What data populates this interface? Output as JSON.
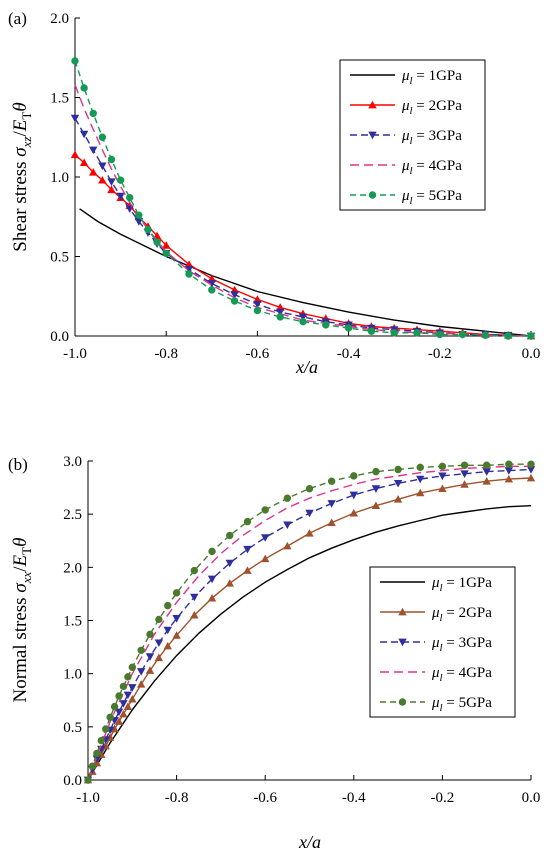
{
  "chart_data": [
    {
      "id": "a",
      "type": "line",
      "panel_label": "(a)",
      "ylabel_prefix": "Shear stress ",
      "ylabel_symbol": "σ",
      "ylabel_symbol_sub": "xz",
      "ylabel_div": "/",
      "ylabel_E": "E",
      "ylabel_E_sub": "T",
      "ylabel_theta": "θ",
      "xlabel_main": "x",
      "xlabel_rest": "/a",
      "xlim": [
        -1.0,
        0.0
      ],
      "ylim": [
        0.0,
        2.0
      ],
      "xticks": [
        -1.0,
        -0.8,
        -0.6,
        -0.4,
        -0.2,
        0.0
      ],
      "xtick_labels": [
        "-1.0",
        "-0.8",
        "-0.6",
        "-0.4",
        "-0.2",
        "0.0"
      ],
      "yticks": [
        0.0,
        0.5,
        1.0,
        1.5,
        2.0
      ],
      "ytick_labels": [
        "0.0",
        "0.5",
        "1.0",
        "1.5",
        "2.0"
      ],
      "grid": false,
      "legend_position": "top-right",
      "series": [
        {
          "name": "1GPa",
          "label_prefix": "μ",
          "label_sub": "l",
          "label_eq": " = ",
          "color": "#000000",
          "dash": "solid",
          "marker": "none",
          "x": [
            -0.99,
            -0.95,
            -0.9,
            -0.85,
            -0.8,
            -0.75,
            -0.7,
            -0.6,
            -0.5,
            -0.4,
            -0.3,
            -0.2,
            -0.1,
            0.0
          ],
          "y": [
            0.8,
            0.72,
            0.64,
            0.57,
            0.5,
            0.44,
            0.38,
            0.28,
            0.21,
            0.15,
            0.1,
            0.06,
            0.03,
            0.0
          ]
        },
        {
          "name": "2GPa",
          "label_prefix": "μ",
          "label_sub": "l",
          "label_eq": " = ",
          "color": "#ff0000",
          "dash": "solid",
          "marker": "triangle",
          "x": [
            -1.0,
            -0.98,
            -0.96,
            -0.94,
            -0.92,
            -0.9,
            -0.88,
            -0.86,
            -0.84,
            -0.82,
            -0.8,
            -0.75,
            -0.7,
            -0.65,
            -0.6,
            -0.55,
            -0.5,
            -0.45,
            -0.4,
            -0.35,
            -0.3,
            -0.25,
            -0.2,
            -0.15,
            -0.1,
            -0.05,
            0.0
          ],
          "y": [
            1.14,
            1.09,
            1.03,
            0.98,
            0.92,
            0.87,
            0.82,
            0.75,
            0.69,
            0.63,
            0.57,
            0.45,
            0.36,
            0.29,
            0.23,
            0.18,
            0.14,
            0.11,
            0.08,
            0.06,
            0.05,
            0.04,
            0.03,
            0.02,
            0.01,
            0.005,
            0.0
          ]
        },
        {
          "name": "3GPa",
          "label_prefix": "μ",
          "label_sub": "l",
          "label_eq": " = ",
          "color": "#2e2e9e",
          "dash": "7,4",
          "marker": "triangle-down",
          "x": [
            -1.0,
            -0.98,
            -0.96,
            -0.94,
            -0.92,
            -0.9,
            -0.88,
            -0.86,
            -0.84,
            -0.82,
            -0.8,
            -0.75,
            -0.7,
            -0.65,
            -0.6,
            -0.55,
            -0.5,
            -0.45,
            -0.4,
            -0.35,
            -0.3,
            -0.25,
            -0.2,
            -0.15,
            -0.1,
            -0.05,
            0.0
          ],
          "y": [
            1.37,
            1.27,
            1.17,
            1.07,
            0.97,
            0.88,
            0.8,
            0.72,
            0.65,
            0.58,
            0.52,
            0.42,
            0.33,
            0.26,
            0.2,
            0.15,
            0.12,
            0.09,
            0.07,
            0.05,
            0.04,
            0.03,
            0.02,
            0.01,
            0.01,
            0.005,
            0.0
          ]
        },
        {
          "name": "4GPa",
          "label_prefix": "μ",
          "label_sub": "l",
          "label_eq": " = ",
          "color": "#e0338a",
          "dash": "9,5",
          "marker": "none",
          "x": [
            -1.0,
            -0.98,
            -0.96,
            -0.94,
            -0.92,
            -0.9,
            -0.88,
            -0.86,
            -0.84,
            -0.82,
            -0.8,
            -0.75,
            -0.7,
            -0.65,
            -0.6,
            -0.55,
            -0.5,
            -0.45,
            -0.4,
            -0.35,
            -0.3,
            -0.25,
            -0.2,
            -0.15,
            -0.1,
            -0.05,
            0.0
          ],
          "y": [
            1.58,
            1.43,
            1.3,
            1.17,
            1.05,
            0.94,
            0.84,
            0.75,
            0.67,
            0.6,
            0.53,
            0.41,
            0.32,
            0.24,
            0.18,
            0.14,
            0.1,
            0.08,
            0.06,
            0.04,
            0.03,
            0.02,
            0.02,
            0.01,
            0.005,
            0.0,
            0.0
          ]
        },
        {
          "name": "5GPa",
          "label_prefix": "μ",
          "label_sub": "l",
          "label_eq": " = ",
          "color": "#159a55",
          "dash": "6,4",
          "marker": "circle",
          "x": [
            -1.0,
            -0.98,
            -0.96,
            -0.94,
            -0.92,
            -0.9,
            -0.88,
            -0.86,
            -0.84,
            -0.82,
            -0.8,
            -0.75,
            -0.7,
            -0.65,
            -0.6,
            -0.55,
            -0.5,
            -0.45,
            -0.4,
            -0.35,
            -0.3,
            -0.25,
            -0.2,
            -0.15,
            -0.1,
            -0.05,
            0.0
          ],
          "y": [
            1.73,
            1.56,
            1.4,
            1.25,
            1.11,
            0.98,
            0.87,
            0.76,
            0.67,
            0.59,
            0.52,
            0.39,
            0.29,
            0.22,
            0.16,
            0.12,
            0.09,
            0.07,
            0.05,
            0.03,
            0.02,
            0.02,
            0.01,
            0.01,
            0.005,
            0.0,
            0.0
          ]
        }
      ]
    },
    {
      "id": "b",
      "type": "line",
      "panel_label": "(b)",
      "ylabel_prefix": "Normal stress ",
      "ylabel_symbol": "σ",
      "ylabel_symbol_sub": "xx",
      "ylabel_div": "/",
      "ylabel_E": "E",
      "ylabel_E_sub": "T",
      "ylabel_theta": "θ",
      "xlabel_main": "x",
      "xlabel_rest": "/a",
      "xlim": [
        -1.0,
        0.0
      ],
      "ylim": [
        0.0,
        3.0
      ],
      "xticks": [
        -1.0,
        -0.8,
        -0.6,
        -0.4,
        -0.2,
        0.0
      ],
      "xtick_labels": [
        "-1.0",
        "-0.8",
        "-0.6",
        "-0.4",
        "-0.2",
        "0.0"
      ],
      "yticks": [
        0.0,
        0.5,
        1.0,
        1.5,
        2.0,
        2.5,
        3.0
      ],
      "ytick_labels": [
        "0.0",
        "0.5",
        "1.0",
        "1.5",
        "2.0",
        "2.5",
        "3.0"
      ],
      "grid": false,
      "legend_position": "bottom-right",
      "series": [
        {
          "name": "1GPa",
          "label_prefix": "μ",
          "label_sub": "l",
          "label_eq": " = ",
          "color": "#000000",
          "dash": "solid",
          "marker": "none",
          "x": [
            -1.0,
            -0.95,
            -0.9,
            -0.85,
            -0.8,
            -0.75,
            -0.7,
            -0.65,
            -0.6,
            -0.55,
            -0.5,
            -0.45,
            -0.4,
            -0.35,
            -0.3,
            -0.25,
            -0.2,
            -0.15,
            -0.1,
            -0.05,
            0.0
          ],
          "y": [
            0.0,
            0.35,
            0.66,
            0.93,
            1.17,
            1.38,
            1.56,
            1.72,
            1.86,
            1.98,
            2.09,
            2.18,
            2.26,
            2.33,
            2.39,
            2.44,
            2.49,
            2.52,
            2.55,
            2.57,
            2.58
          ]
        },
        {
          "name": "2GPa",
          "label_prefix": "μ",
          "label_sub": "l",
          "label_eq": " = ",
          "color": "#a0522d",
          "dash": "solid",
          "marker": "triangle",
          "x": [
            -1.0,
            -0.99,
            -0.98,
            -0.97,
            -0.96,
            -0.95,
            -0.94,
            -0.93,
            -0.92,
            -0.91,
            -0.9,
            -0.88,
            -0.86,
            -0.84,
            -0.82,
            -0.8,
            -0.76,
            -0.72,
            -0.68,
            -0.64,
            -0.6,
            -0.55,
            -0.5,
            -0.45,
            -0.4,
            -0.35,
            -0.3,
            -0.25,
            -0.2,
            -0.15,
            -0.1,
            -0.05,
            0.0
          ],
          "y": [
            0.0,
            0.08,
            0.16,
            0.24,
            0.32,
            0.4,
            0.48,
            0.55,
            0.62,
            0.69,
            0.76,
            0.9,
            1.03,
            1.15,
            1.26,
            1.36,
            1.55,
            1.71,
            1.85,
            1.97,
            2.08,
            2.2,
            2.32,
            2.42,
            2.51,
            2.58,
            2.64,
            2.7,
            2.74,
            2.78,
            2.81,
            2.83,
            2.84
          ]
        },
        {
          "name": "3GPa",
          "label_prefix": "μ",
          "label_sub": "l",
          "label_eq": " = ",
          "color": "#2e2e9e",
          "dash": "7,4",
          "marker": "triangle-down",
          "x": [
            -1.0,
            -0.99,
            -0.98,
            -0.97,
            -0.96,
            -0.95,
            -0.94,
            -0.93,
            -0.92,
            -0.91,
            -0.9,
            -0.88,
            -0.86,
            -0.84,
            -0.82,
            -0.8,
            -0.76,
            -0.72,
            -0.68,
            -0.64,
            -0.6,
            -0.55,
            -0.5,
            -0.45,
            -0.4,
            -0.35,
            -0.3,
            -0.25,
            -0.2,
            -0.15,
            -0.1,
            -0.05,
            0.0
          ],
          "y": [
            0.0,
            0.1,
            0.2,
            0.29,
            0.38,
            0.47,
            0.56,
            0.64,
            0.72,
            0.8,
            0.87,
            1.02,
            1.16,
            1.29,
            1.41,
            1.52,
            1.72,
            1.89,
            2.04,
            2.17,
            2.28,
            2.4,
            2.51,
            2.6,
            2.68,
            2.74,
            2.79,
            2.83,
            2.86,
            2.88,
            2.9,
            2.91,
            2.92
          ]
        },
        {
          "name": "4GPa",
          "label_prefix": "μ",
          "label_sub": "l",
          "label_eq": " = ",
          "color": "#e0338a",
          "dash": "9,5",
          "marker": "none",
          "x": [
            -1.0,
            -0.95,
            -0.9,
            -0.85,
            -0.8,
            -0.75,
            -0.7,
            -0.65,
            -0.6,
            -0.55,
            -0.5,
            -0.45,
            -0.4,
            -0.35,
            -0.3,
            -0.25,
            -0.2,
            -0.15,
            -0.1,
            -0.05,
            0.0
          ],
          "y": [
            0.0,
            0.55,
            1.0,
            1.37,
            1.67,
            1.92,
            2.13,
            2.3,
            2.44,
            2.56,
            2.65,
            2.72,
            2.78,
            2.83,
            2.86,
            2.89,
            2.91,
            2.93,
            2.94,
            2.95,
            2.95
          ]
        },
        {
          "name": "5GPa",
          "label_prefix": "μ",
          "label_sub": "l",
          "label_eq": " = ",
          "color": "#4a7a2e",
          "dash": "6,4",
          "marker": "circle",
          "x": [
            -1.0,
            -0.99,
            -0.98,
            -0.97,
            -0.96,
            -0.95,
            -0.94,
            -0.93,
            -0.92,
            -0.91,
            -0.9,
            -0.88,
            -0.86,
            -0.84,
            -0.82,
            -0.8,
            -0.76,
            -0.72,
            -0.68,
            -0.64,
            -0.6,
            -0.55,
            -0.5,
            -0.45,
            -0.4,
            -0.35,
            -0.3,
            -0.25,
            -0.2,
            -0.15,
            -0.1,
            -0.05,
            0.0
          ],
          "y": [
            0.0,
            0.13,
            0.25,
            0.37,
            0.48,
            0.59,
            0.69,
            0.79,
            0.88,
            0.97,
            1.06,
            1.22,
            1.37,
            1.51,
            1.64,
            1.76,
            1.97,
            2.15,
            2.3,
            2.43,
            2.54,
            2.65,
            2.74,
            2.81,
            2.86,
            2.9,
            2.92,
            2.94,
            2.95,
            2.96,
            2.96,
            2.97,
            2.97
          ]
        }
      ]
    }
  ]
}
